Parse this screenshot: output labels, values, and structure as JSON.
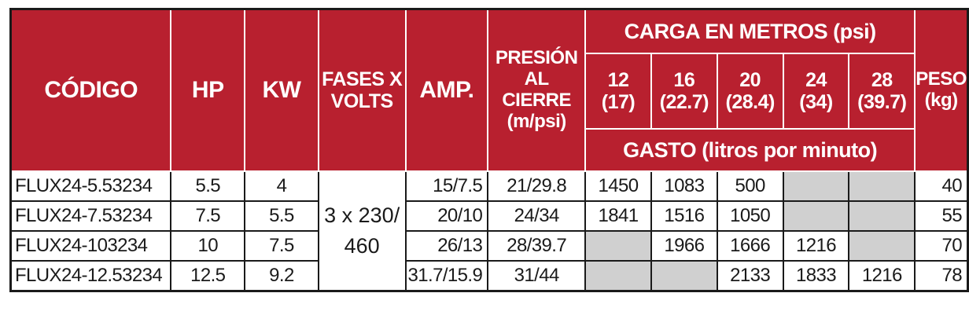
{
  "header": {
    "codigo": "CÓDIGO",
    "hp": "HP",
    "kw": "KW",
    "fases_line1": "FASES X",
    "fases_line2": "VOLTS",
    "amp": "AMP.",
    "presion_line1": "PRESIÓN",
    "presion_line2": "AL CIERRE",
    "presion_line3": "(m/psi)",
    "carga": "CARGA EN METROS (psi)",
    "gasto": "GASTO (litros por minuto)",
    "peso_line1": "PESO",
    "peso_line2": "(kg)",
    "cargas": [
      {
        "m": "12",
        "psi": "(17)"
      },
      {
        "m": "16",
        "psi": "(22.7)"
      },
      {
        "m": "20",
        "psi": "(28.4)"
      },
      {
        "m": "24",
        "psi": "(34)"
      },
      {
        "m": "28",
        "psi": "(39.7)"
      }
    ]
  },
  "fases_value_line1": "3 x 230/",
  "fases_value_line2": "460",
  "rows": [
    {
      "codigo": "FLUX24-5.53234",
      "hp": "5.5",
      "kw": "4",
      "amp": "15/7.5",
      "presion": "21/29.8",
      "gasto": [
        "1450",
        "1083",
        "500",
        "",
        ""
      ],
      "peso": "40"
    },
    {
      "codigo": "FLUX24-7.53234",
      "hp": "7.5",
      "kw": "5.5",
      "amp": "20/10",
      "presion": "24/34",
      "gasto": [
        "1841",
        "1516",
        "1050",
        "",
        ""
      ],
      "peso": "55"
    },
    {
      "codigo": "FLUX24-103234",
      "hp": "10",
      "kw": "7.5",
      "amp": "26/13",
      "presion": "28/39.7",
      "gasto": [
        "",
        "1966",
        "1666",
        "1216",
        ""
      ],
      "peso": "70"
    },
    {
      "codigo": "FLUX24-12.53234",
      "hp": "12.5",
      "kw": "9.2",
      "amp": "31.7/15.9",
      "presion": "31/44",
      "gasto": [
        "",
        "",
        "2133",
        "1833",
        "1216"
      ],
      "peso": "78"
    }
  ]
}
